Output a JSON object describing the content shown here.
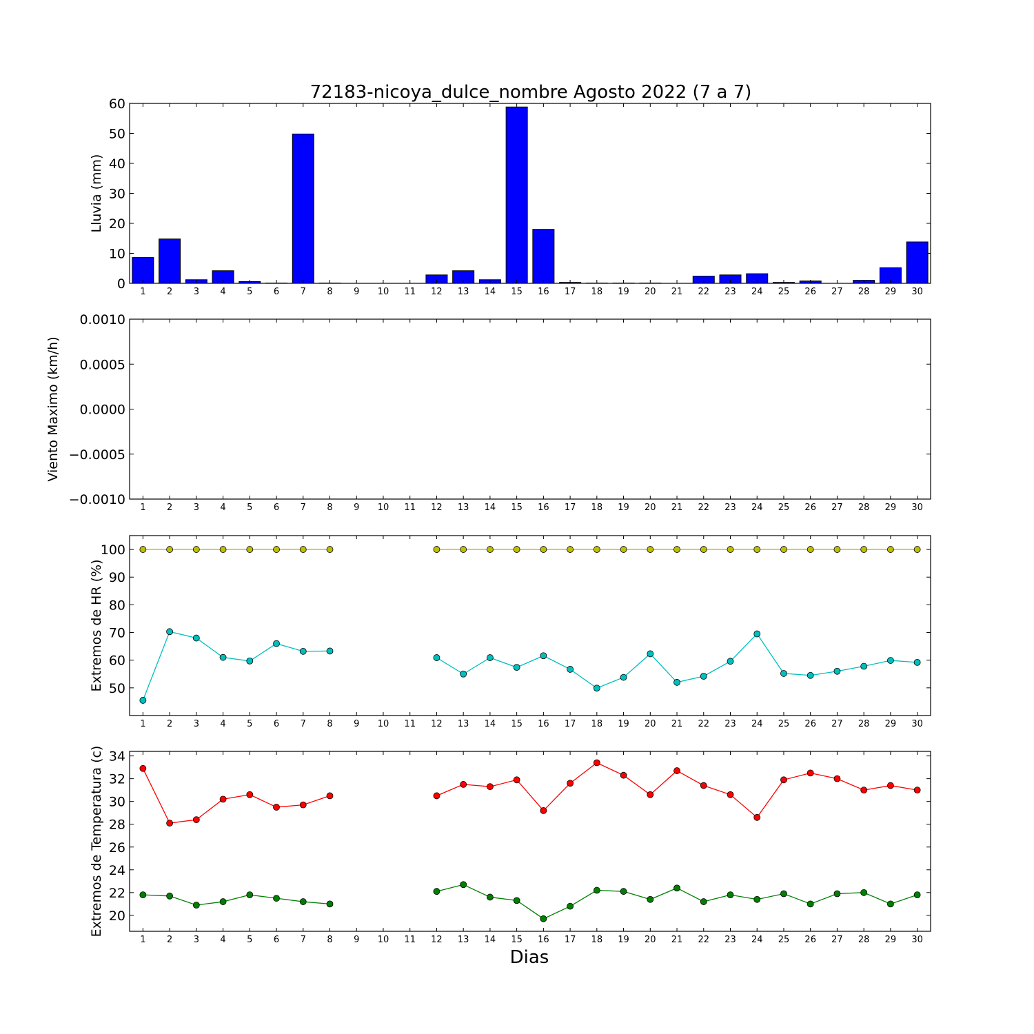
{
  "title": "72183-nicoya_dulce_nombre Agosto 2022  (7 a 7)",
  "xlabel": "Dias",
  "colors": {
    "rain": "#0000ff",
    "hr_max": "#bfbf00",
    "hr_min": "#00bfbf",
    "temp_max": "#ff0000",
    "temp_min": "#008000"
  },
  "chart_data": [
    {
      "type": "bar",
      "ylabel": "Lluvia (mm)",
      "ylim": [
        0,
        60
      ],
      "yticks": [
        "0",
        "10",
        "20",
        "30",
        "40",
        "50",
        "60"
      ],
      "categories": [
        "1",
        "2",
        "3",
        "4",
        "5",
        "6",
        "7",
        "8",
        "9",
        "10",
        "11",
        "12",
        "13",
        "14",
        "15",
        "16",
        "17",
        "18",
        "19",
        "20",
        "21",
        "22",
        "23",
        "24",
        "25",
        "26",
        "27",
        "28",
        "29",
        "30"
      ],
      "values": [
        8.6,
        14.8,
        1.2,
        4.2,
        0.6,
        0.1,
        49.8,
        0.1,
        0,
        0,
        0,
        2.8,
        4.2,
        1.2,
        58.8,
        18.0,
        0.3,
        0.1,
        0.1,
        0.1,
        0,
        2.4,
        2.8,
        3.2,
        0.3,
        0.8,
        0,
        1.0,
        5.2,
        13.8
      ]
    },
    {
      "type": "line",
      "ylabel": "Viento Maximo (km/h)",
      "ylim": [
        -0.001,
        0.001
      ],
      "yticks": [
        "−0.0010",
        "−0.0005",
        "0.0000",
        "0.0005",
        "0.0010"
      ],
      "categories": [
        "1",
        "2",
        "3",
        "4",
        "5",
        "6",
        "7",
        "8",
        "9",
        "10",
        "11",
        "12",
        "13",
        "14",
        "15",
        "16",
        "17",
        "18",
        "19",
        "20",
        "21",
        "22",
        "23",
        "24",
        "25",
        "26",
        "27",
        "28",
        "29",
        "30"
      ],
      "series": []
    },
    {
      "type": "line",
      "ylabel": "Extremos de HR (%)",
      "ylim": [
        40,
        105
      ],
      "yticks": [
        "50",
        "60",
        "70",
        "80",
        "90",
        "100"
      ],
      "categories": [
        "1",
        "2",
        "3",
        "4",
        "5",
        "6",
        "7",
        "8",
        "9",
        "10",
        "11",
        "12",
        "13",
        "14",
        "15",
        "16",
        "17",
        "18",
        "19",
        "20",
        "21",
        "22",
        "23",
        "24",
        "25",
        "26",
        "27",
        "28",
        "29",
        "30"
      ],
      "series": [
        {
          "values": [
            100,
            100,
            100,
            100,
            100,
            100,
            100,
            100,
            null,
            null,
            null,
            100,
            100,
            100,
            100,
            100,
            100,
            100,
            100,
            100,
            100,
            100,
            100,
            100,
            100,
            100,
            100,
            100,
            100,
            100
          ]
        },
        {
          "values": [
            45.5,
            70.3,
            68.0,
            61.0,
            59.7,
            66.0,
            63.2,
            63.3,
            null,
            null,
            null,
            60.9,
            55.0,
            60.9,
            57.4,
            61.6,
            56.7,
            49.9,
            53.8,
            62.3,
            52.0,
            54.2,
            59.6,
            69.5,
            55.2,
            54.5,
            56.0,
            57.8,
            59.9,
            59.2
          ]
        }
      ]
    },
    {
      "type": "line",
      "ylabel": "Extremos de Temperatura (c)",
      "ylim": [
        18.6,
        34.4
      ],
      "yticks": [
        "20",
        "22",
        "24",
        "26",
        "28",
        "30",
        "32",
        "34"
      ],
      "categories": [
        "1",
        "2",
        "3",
        "4",
        "5",
        "6",
        "7",
        "8",
        "9",
        "10",
        "11",
        "12",
        "13",
        "14",
        "15",
        "16",
        "17",
        "18",
        "19",
        "20",
        "21",
        "22",
        "23",
        "24",
        "25",
        "26",
        "27",
        "28",
        "29",
        "30"
      ],
      "series": [
        {
          "values": [
            32.9,
            28.1,
            28.4,
            30.2,
            30.6,
            29.5,
            29.7,
            30.5,
            null,
            null,
            null,
            30.5,
            31.5,
            31.3,
            31.9,
            29.2,
            31.6,
            33.4,
            32.3,
            30.6,
            32.7,
            31.4,
            30.6,
            28.6,
            31.9,
            32.5,
            32.0,
            31.0,
            31.4,
            31.0
          ]
        },
        {
          "values": [
            21.8,
            21.7,
            20.9,
            21.2,
            21.8,
            21.5,
            21.2,
            21.0,
            null,
            null,
            null,
            22.1,
            22.7,
            21.6,
            21.3,
            19.7,
            20.8,
            22.2,
            22.1,
            21.4,
            22.4,
            21.2,
            21.8,
            21.4,
            21.9,
            21.0,
            21.9,
            22.0,
            21.0,
            21.8
          ]
        }
      ]
    }
  ]
}
